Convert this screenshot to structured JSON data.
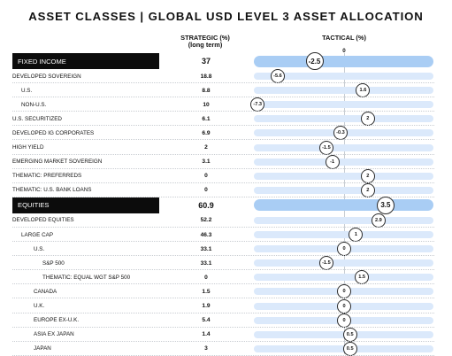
{
  "title": "ASSET CLASSES | GLOBAL USD LEVEL 3 ASSET ALLOCATION",
  "headers": {
    "strategic_line1": "STRATEGIC (%)",
    "strategic_line2": "(long term)",
    "tactical": "TACTICAL (%)",
    "tactical_zero": "0"
  },
  "chart_data": {
    "type": "table",
    "title": "ASSET CLASSES | GLOBAL USD LEVEL 3 ASSET ALLOCATION",
    "columns": [
      "STRATEGIC (%) (long term)",
      "TACTICAL (%)"
    ],
    "tactical_axis": {
      "center": 0,
      "marker_shape": "circle"
    },
    "rows": [
      {
        "label": "FIXED INCOME",
        "strategic": "37",
        "tactical": -2.5,
        "tactical_label": "-2.5",
        "level": 0,
        "heading": true
      },
      {
        "label": "DEVELOPED SOVEREIGN",
        "strategic": "18.8",
        "tactical": -5.6,
        "tactical_label": "-5.6",
        "level": 0
      },
      {
        "label": "U.S.",
        "strategic": "8.8",
        "tactical": 1.6,
        "tactical_label": "1.6",
        "level": 1
      },
      {
        "label": "NON-U.S.",
        "strategic": "10",
        "tactical": -7.3,
        "tactical_label": "-7.3",
        "level": 1
      },
      {
        "label": "U.S. SECURITIZED",
        "strategic": "6.1",
        "tactical": 2,
        "tactical_label": "2",
        "level": 0
      },
      {
        "label": "DEVELOPED IG CORPORATES",
        "strategic": "6.9",
        "tactical": -0.3,
        "tactical_label": "-0.3",
        "level": 0
      },
      {
        "label": "HIGH YIELD",
        "strategic": "2",
        "tactical": -1.5,
        "tactical_label": "-1.5",
        "level": 0
      },
      {
        "label": "EMERGING MARKET SOVEREIGN",
        "strategic": "3.1",
        "tactical": -1,
        "tactical_label": "-1",
        "level": 0
      },
      {
        "label": "THEMATIC: PREFERREDS",
        "strategic": "0",
        "tactical": 2,
        "tactical_label": "2",
        "level": 0
      },
      {
        "label": "THEMATIC: U.S. BANK LOANS",
        "strategic": "0",
        "tactical": 2,
        "tactical_label": "2",
        "level": 0
      },
      {
        "label": "EQUITIES",
        "strategic": "60.9",
        "tactical": 3.5,
        "tactical_label": "3.5",
        "level": 0,
        "heading": true
      },
      {
        "label": "DEVELOPED EQUITIES",
        "strategic": "52.2",
        "tactical": 2.9,
        "tactical_label": "2.9",
        "level": 0
      },
      {
        "label": "LARGE CAP",
        "strategic": "46.3",
        "tactical": 1,
        "tactical_label": "1",
        "level": 1
      },
      {
        "label": "U.S.",
        "strategic": "33.1",
        "tactical": 0,
        "tactical_label": "0",
        "level": 2
      },
      {
        "label": "S&P 500",
        "strategic": "33.1",
        "tactical": -1.5,
        "tactical_label": "-1.5",
        "level": 3
      },
      {
        "label": "THEMATIC: EQUAL WGT S&P 500",
        "strategic": "0",
        "tactical": 1.5,
        "tactical_label": "1.5",
        "level": 3
      },
      {
        "label": "CANADA",
        "strategic": "1.5",
        "tactical": 0,
        "tactical_label": "0",
        "level": 2
      },
      {
        "label": "U.K.",
        "strategic": "1.9",
        "tactical": 0,
        "tactical_label": "0",
        "level": 2
      },
      {
        "label": "EUROPE EX-U.K.",
        "strategic": "5.4",
        "tactical": 0,
        "tactical_label": "0",
        "level": 2
      },
      {
        "label": "ASIA EX JAPAN",
        "strategic": "1.4",
        "tactical": 0.5,
        "tactical_label": "0.5",
        "level": 2
      },
      {
        "label": "JAPAN",
        "strategic": "3",
        "tactical": 0.5,
        "tactical_label": "0.5",
        "level": 2
      }
    ]
  },
  "colors": {
    "heading_bar": "#a9cdf4",
    "row_bar": "#dbe9fb",
    "heading_label_background": "#0c0c0c"
  }
}
